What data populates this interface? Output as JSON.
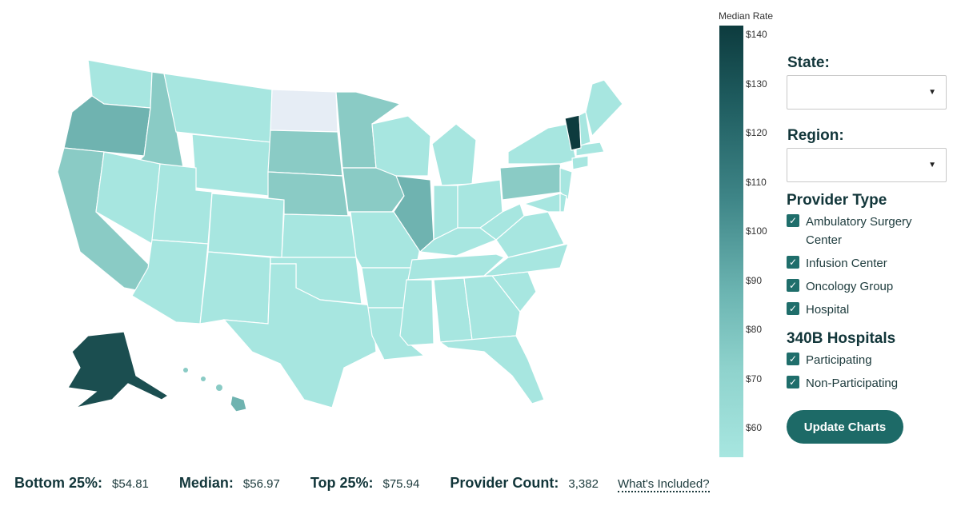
{
  "legend": {
    "title": "Median Rate",
    "ticks": [
      "$140",
      "$130",
      "$120",
      "$110",
      "$100",
      "$90",
      "$80",
      "$70",
      "$60"
    ]
  },
  "controls": {
    "state_label": "State:",
    "region_label": "Region:",
    "state_value": "",
    "region_value": "",
    "provider_type_title": "Provider Type",
    "provider_types": [
      "Ambulatory Surgery Center",
      "Infusion Center",
      "Oncology Group",
      "Hospital"
    ],
    "hospitals_title": "340B Hospitals",
    "hospital_options": [
      "Participating",
      "Non-Participating"
    ],
    "update_label": "Update Charts"
  },
  "stats": {
    "bottom_label": "Bottom 25%:",
    "bottom_value": "$54.81",
    "median_label": "Median:",
    "median_value": "$56.97",
    "top_label": "Top 25%:",
    "top_value": "$75.94",
    "count_label": "Provider Count:",
    "count_value": "3,382",
    "link_label": "What's Included?"
  },
  "colors": {
    "base": "#a7e6e0",
    "mid": "#8acbc5",
    "highlight": "#6fb3b0",
    "dark": "#1b4e50",
    "darkest": "#0d3b3e",
    "no_data": "#e6edf5"
  }
}
